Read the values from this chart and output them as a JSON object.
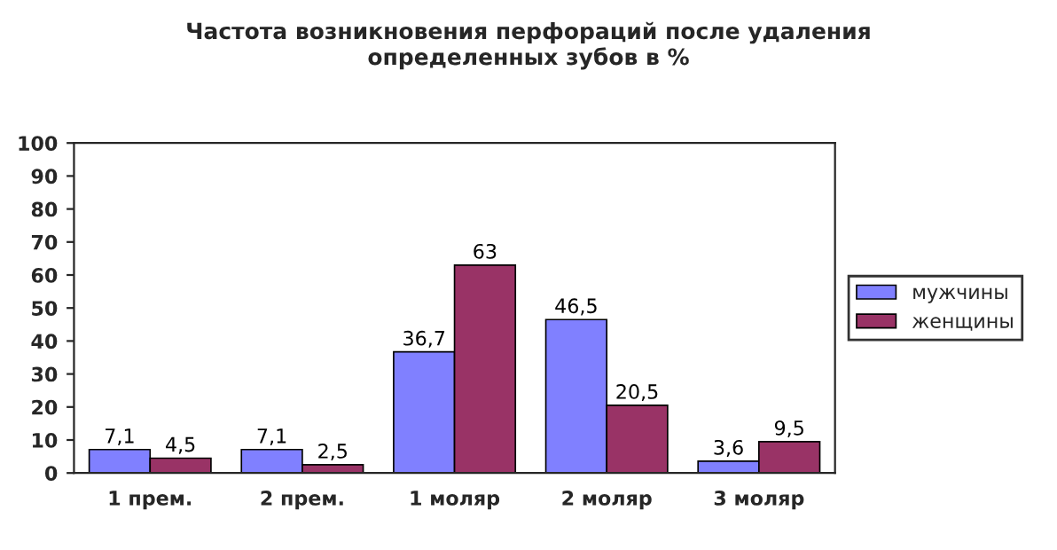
{
  "chart_data": {
    "type": "bar",
    "title": "Частота возникновения перфораций после удаления\nопределенных зубов в %",
    "categories": [
      "1 прем.",
      "2 прем.",
      "1 моляр",
      "2 моляр",
      "3 моляр"
    ],
    "series": [
      {
        "name": "мужчины",
        "color": "#8080ff",
        "values": [
          7.1,
          7.1,
          36.7,
          46.5,
          3.6
        ],
        "value_labels": [
          "7,1",
          "7,1",
          "36,7",
          "46,5",
          "3,6"
        ]
      },
      {
        "name": "женщины",
        "color": "#993366",
        "values": [
          4.5,
          2.5,
          63,
          20.5,
          9.5
        ],
        "value_labels": [
          "4,5",
          "2,5",
          "63",
          "20,5",
          "9,5"
        ]
      }
    ],
    "ylim": [
      0,
      100
    ],
    "yticks": [
      0,
      10,
      20,
      30,
      40,
      50,
      60,
      70,
      80,
      90,
      100
    ],
    "legend": "right",
    "grid": false
  }
}
